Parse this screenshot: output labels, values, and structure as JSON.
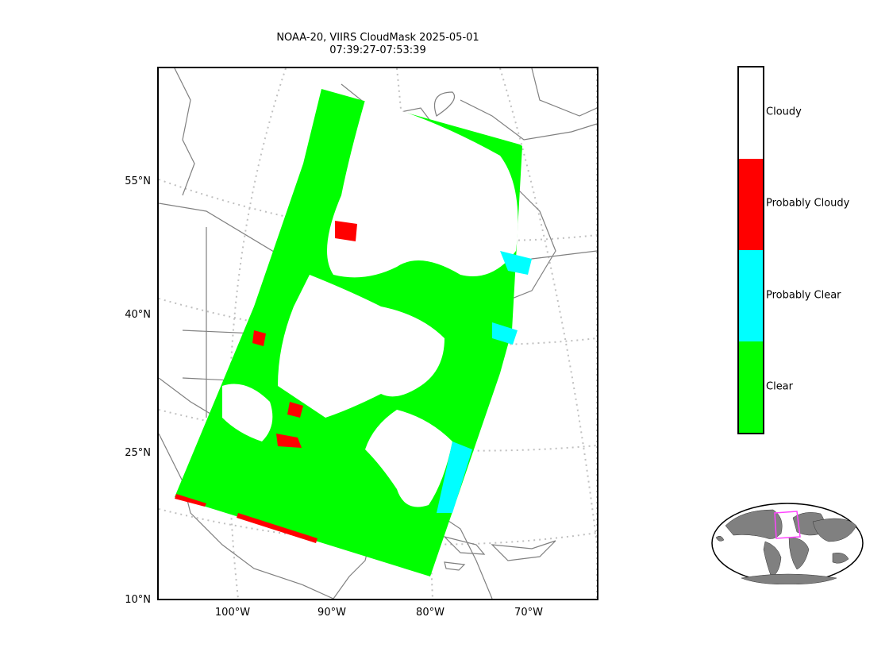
{
  "title": {
    "line1": "NOAA-20, VIIRS CloudMask 2025-05-01",
    "line2": "07:39:27-07:53:39"
  },
  "lat_ticks": [
    "55°N",
    "40°N",
    "25°N",
    "10°N"
  ],
  "lon_ticks": [
    "100°W",
    "90°W",
    "80°W",
    "70°W"
  ],
  "colorbar": {
    "categories": [
      {
        "label": "Cloudy",
        "color": "#ffffff"
      },
      {
        "label": "Probably Cloudy",
        "color": "#ff0000"
      },
      {
        "label": "Probably Clear",
        "color": "#00ffff"
      },
      {
        "label": "Clear",
        "color": "#00ff00"
      }
    ]
  },
  "colors": {
    "clear": "#00ff00",
    "probably_clear": "#00ffff",
    "probably_cloudy": "#ff0000",
    "cloudy": "#ffffff",
    "coastline": "#808080",
    "graticule": "#c0c0c0",
    "inset_land": "#808080",
    "inset_box": "#ff44ff"
  }
}
